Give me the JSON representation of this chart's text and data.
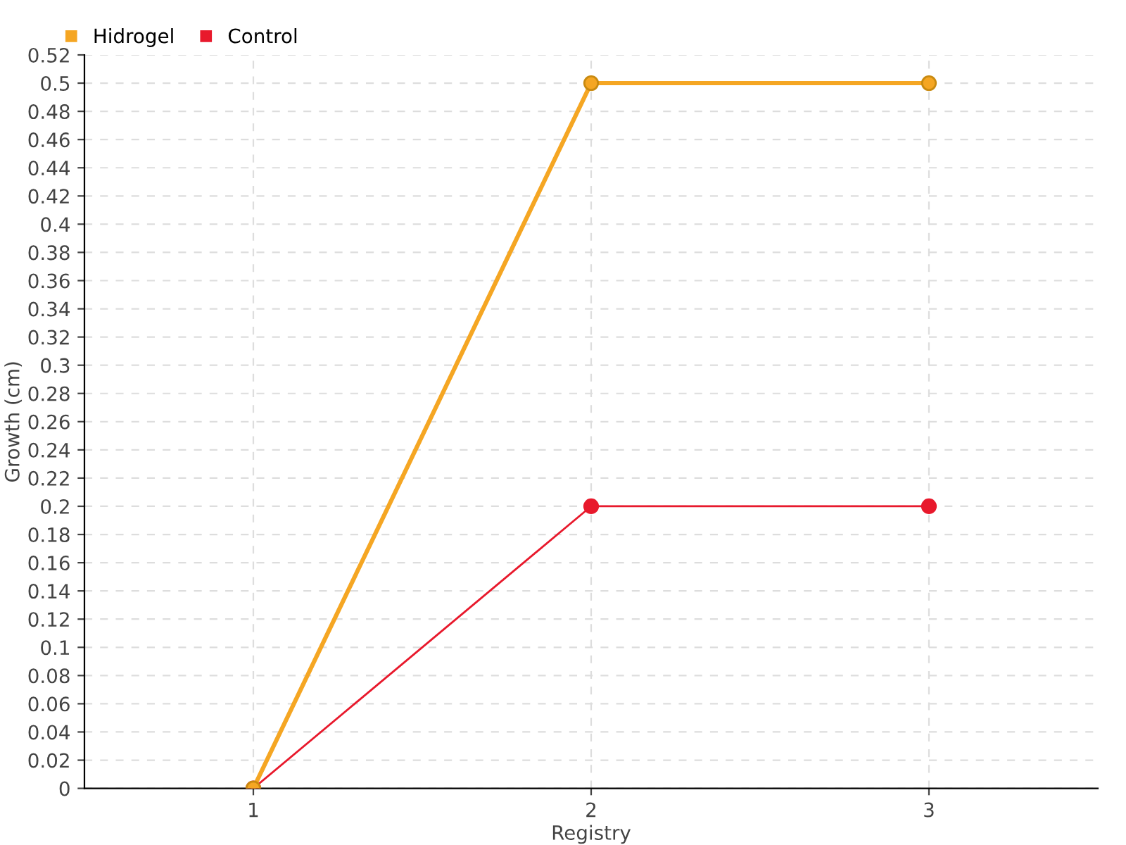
{
  "chart_data": {
    "type": "line",
    "xlabel": "Registry",
    "ylabel": "Growth (cm)",
    "x": [
      1,
      2,
      3
    ],
    "series": [
      {
        "name": "Hidrogel",
        "color": "#f5a623",
        "values": [
          0,
          0.5,
          0.5
        ]
      },
      {
        "name": "Control",
        "color": "#e8192c",
        "values": [
          0,
          0.2,
          0.2
        ]
      }
    ],
    "xlim": [
      0.5,
      3.5
    ],
    "xticks": [
      1,
      2,
      3
    ],
    "ylim": [
      0,
      0.52
    ],
    "yticks": [
      0,
      0.02,
      0.04,
      0.06,
      0.08,
      0.1,
      0.12,
      0.14,
      0.16,
      0.18,
      0.2,
      0.22,
      0.24,
      0.26,
      0.28,
      0.3,
      0.32,
      0.34,
      0.36,
      0.38,
      0.4,
      0.42,
      0.44,
      0.46,
      0.48,
      0.5,
      0.52
    ],
    "grid": true,
    "legend": "top left",
    "marker": "circle",
    "line_style": "solid"
  }
}
